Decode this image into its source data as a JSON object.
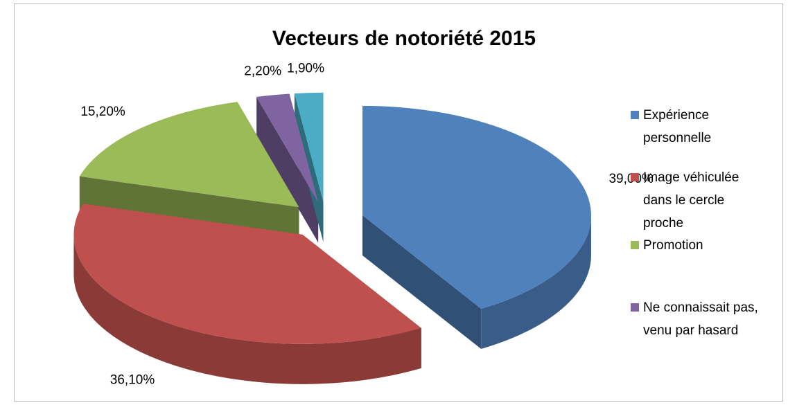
{
  "chart_data": {
    "type": "pie3d",
    "title": "Vecteurs de notoriété 2015",
    "categories": [
      "Expérience personnelle",
      "Image véhiculée dans le cercle proche",
      "Promotion",
      "Ne connaissait pas, venu par hasard",
      null
    ],
    "values": [
      39.0,
      36.1,
      15.2,
      2.2,
      1.9
    ],
    "value_labels": [
      "39,00%",
      "36,10%",
      "15,20%",
      "2,20%",
      "1,90%"
    ],
    "colors": [
      "#4f81bd",
      "#c0504d",
      "#9bbb59",
      "#8064a2",
      "#4bacc6"
    ],
    "legend": "right"
  }
}
